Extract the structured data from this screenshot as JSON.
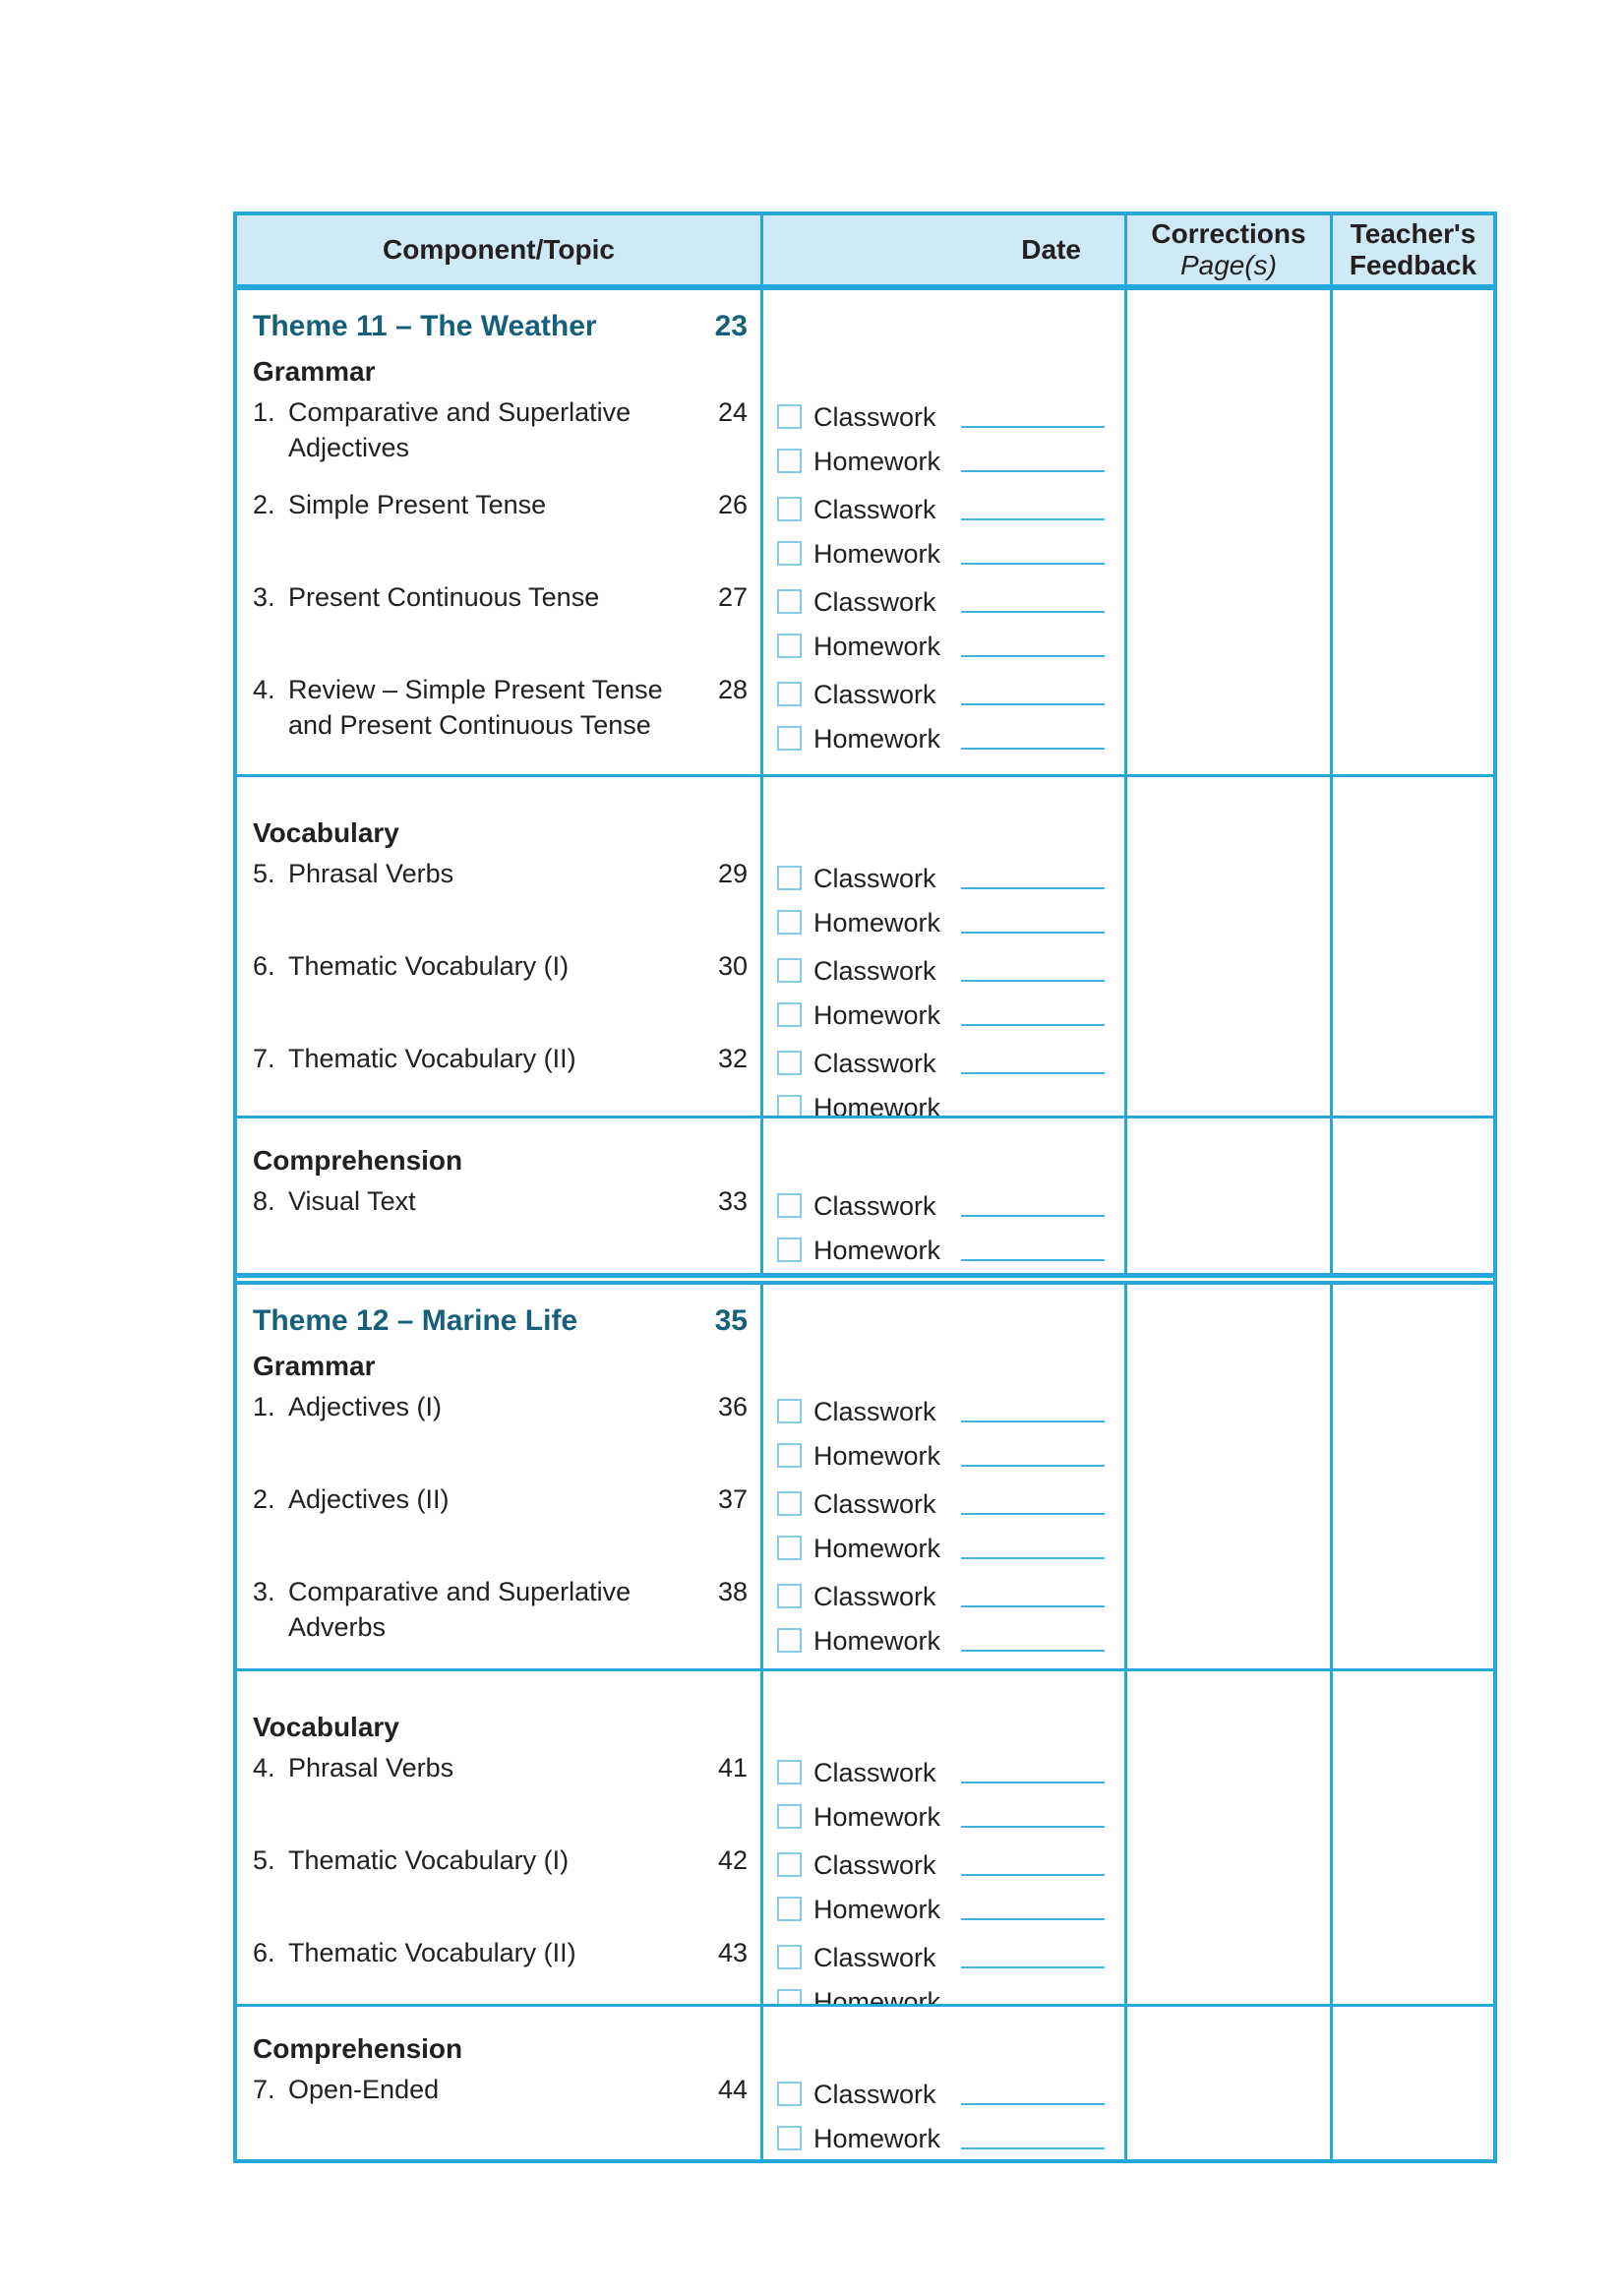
{
  "table": {
    "headers": {
      "component": "Component/Topic",
      "date": "Date",
      "corrections_line1": "Corrections",
      "corrections_line2": "Page(s)",
      "feedback_line1": "Teacher's",
      "feedback_line2": "Feedback"
    },
    "checkbox_labels": {
      "classwork": "Classwork",
      "homework": "Homework"
    },
    "themes": [
      {
        "title": "Theme 11 – The Weather",
        "page": "23",
        "sections": [
          {
            "heading": "Grammar",
            "items": [
              {
                "num": "1.",
                "text": "Comparative and Superlative Adjectives",
                "page": "24"
              },
              {
                "num": "2.",
                "text": "Simple Present Tense",
                "page": "26"
              },
              {
                "num": "3.",
                "text": "Present Continuous Tense",
                "page": "27"
              },
              {
                "num": "4.",
                "text": "Review – Simple Present Tense and Present Continuous Tense",
                "page": "28"
              }
            ]
          },
          {
            "heading": "Vocabulary",
            "items": [
              {
                "num": "5.",
                "text": "Phrasal Verbs",
                "page": "29"
              },
              {
                "num": "6.",
                "text": "Thematic Vocabulary (I)",
                "page": "30"
              },
              {
                "num": "7.",
                "text": "Thematic Vocabulary (II)",
                "page": "32"
              }
            ]
          },
          {
            "heading": "Comprehension",
            "items": [
              {
                "num": "8.",
                "text": "Visual Text",
                "page": "33"
              }
            ]
          }
        ]
      },
      {
        "title": "Theme 12 – Marine Life",
        "page": "35",
        "sections": [
          {
            "heading": "Grammar",
            "items": [
              {
                "num": "1.",
                "text": "Adjectives (I)",
                "page": "36"
              },
              {
                "num": "2.",
                "text": "Adjectives (II)",
                "page": "37"
              },
              {
                "num": "3.",
                "text": "Comparative and Superlative Adverbs",
                "page": "38"
              }
            ]
          },
          {
            "heading": "Vocabulary",
            "items": [
              {
                "num": "4.",
                "text": "Phrasal Verbs",
                "page": "41"
              },
              {
                "num": "5.",
                "text": "Thematic Vocabulary (I)",
                "page": "42"
              },
              {
                "num": "6.",
                "text": "Thematic Vocabulary (II)",
                "page": "43"
              }
            ]
          },
          {
            "heading": "Comprehension",
            "items": [
              {
                "num": "7.",
                "text": "Open-Ended",
                "page": "44"
              }
            ]
          }
        ]
      }
    ],
    "colors": {
      "border": "#25a7d9",
      "header_background": "#cfe9f7",
      "theme_title": "#17607c",
      "checkbox_border": "#85ccea",
      "date_line": "#3eb3e0",
      "text": "#232022"
    }
  }
}
